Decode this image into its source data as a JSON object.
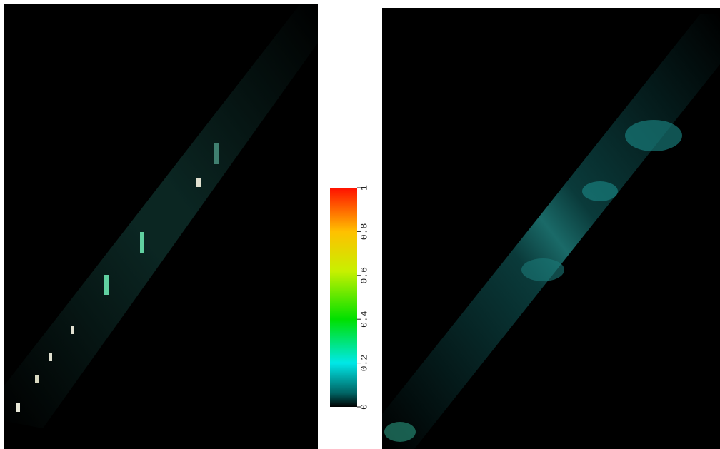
{
  "chart_data": {
    "type": "colorbar",
    "ylim": [
      0,
      1
    ],
    "yticks": [
      0,
      0.2,
      0.4,
      0.6,
      0.8,
      1
    ]
  }
}
